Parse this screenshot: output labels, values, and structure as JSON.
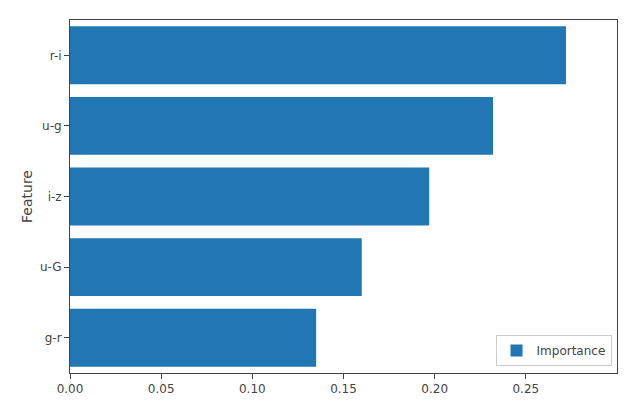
{
  "chart_data": {
    "type": "bar",
    "orientation": "horizontal",
    "categories": [
      "g-r",
      "u-G",
      "i-z",
      "u-g",
      "r-i"
    ],
    "series": [
      {
        "name": "Importance",
        "color": "#2077b4",
        "values": [
          0.135,
          0.16,
          0.197,
          0.232,
          0.272
        ]
      }
    ],
    "ylabel": "Feature",
    "xlim": [
      0.0,
      0.3
    ],
    "xticks": [
      {
        "value": 0.0,
        "label": "0.00"
      },
      {
        "value": 0.05,
        "label": "0.05"
      },
      {
        "value": 0.1,
        "label": "0.10"
      },
      {
        "value": 0.15,
        "label": "0.15"
      },
      {
        "value": 0.2,
        "label": "0.20"
      },
      {
        "value": 0.25,
        "label": "0.25"
      }
    ],
    "grid": false,
    "legend": "lower right"
  }
}
